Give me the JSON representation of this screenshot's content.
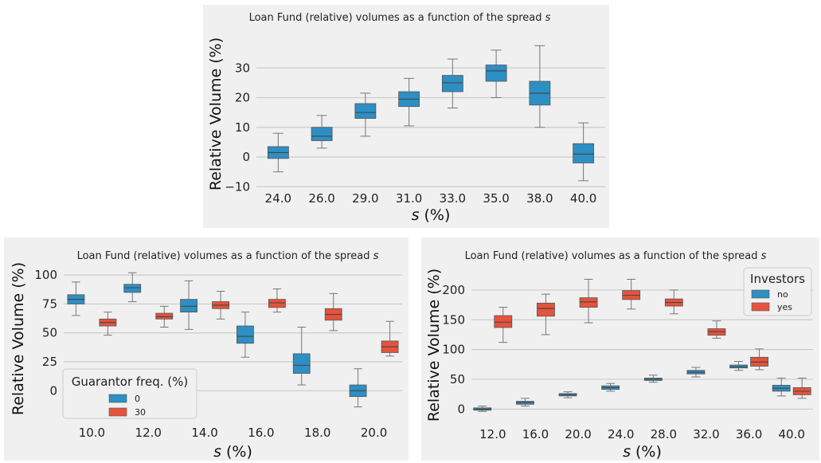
{
  "colors": {
    "blue": "#2d8fc4",
    "red": "#e5533c",
    "grid": "#cbcbcb",
    "panel_bg": "#f0f0f0"
  },
  "chart_data": [
    {
      "type": "box",
      "title": "Loan Fund (relative) volumes as a function of the spread ",
      "title_var": "s",
      "xlabel_var": "s",
      "xlabel_unit": " (%)",
      "ylabel": "Relative Volume (%)",
      "yticks": [
        -10,
        0,
        10,
        20,
        30
      ],
      "ylim": [
        -11,
        40
      ],
      "categories": [
        "24.0",
        "26.0",
        "29.0",
        "31.0",
        "33.0",
        "35.0",
        "38.0",
        "40.0"
      ],
      "series": [
        {
          "color": "#2d8fc4",
          "boxes": [
            {
              "whislo": -5,
              "q1": -0.5,
              "med": 1.5,
              "q3": 3.5,
              "whishi": 8
            },
            {
              "whislo": 3,
              "q1": 5.5,
              "med": 7,
              "q3": 10,
              "whishi": 14
            },
            {
              "whislo": 7,
              "q1": 13,
              "med": 15,
              "q3": 18,
              "whishi": 21.5
            },
            {
              "whislo": 10.5,
              "q1": 17,
              "med": 19.5,
              "q3": 22,
              "whishi": 26.5
            },
            {
              "whislo": 16.5,
              "q1": 22,
              "med": 25,
              "q3": 27.5,
              "whishi": 33
            },
            {
              "whislo": 20,
              "q1": 25.5,
              "med": 29,
              "q3": 31,
              "whishi": 36
            },
            {
              "whislo": 10,
              "q1": 17.5,
              "med": 21.5,
              "q3": 25.5,
              "whishi": 37.5
            },
            {
              "whislo": -8,
              "q1": -2,
              "med": 1,
              "q3": 4.5,
              "whishi": 11.5
            }
          ]
        }
      ]
    },
    {
      "type": "box",
      "title": "Loan Fund (relative) volumes as a function of the spread ",
      "title_var": "s",
      "xlabel_var": "s",
      "xlabel_unit": " (%)",
      "ylabel": "Relative Volume (%)",
      "yticks": [
        0,
        25,
        50,
        75,
        100
      ],
      "ylim": [
        -17,
        107
      ],
      "categories": [
        "10.0",
        "12.0",
        "14.0",
        "16.0",
        "18.0",
        "20.0"
      ],
      "legend": {
        "title": "Guarantor freq. (%)",
        "placement": "lower-left"
      },
      "series": [
        {
          "name": "0",
          "color": "#2d8fc4",
          "boxes": [
            {
              "whislo": 65,
              "q1": 75,
              "med": 79,
              "q3": 83,
              "whishi": 94
            },
            {
              "whislo": 77,
              "q1": 85,
              "med": 89,
              "q3": 92,
              "whishi": 102
            },
            {
              "whislo": 53,
              "q1": 68,
              "med": 73,
              "q3": 79,
              "whishi": 95
            },
            {
              "whislo": 29,
              "q1": 41,
              "med": 47,
              "q3": 56,
              "whishi": 68
            },
            {
              "whislo": 5,
              "q1": 15,
              "med": 22,
              "q3": 32,
              "whishi": 55
            },
            {
              "whislo": -14,
              "q1": -5,
              "med": 0,
              "q3": 5,
              "whishi": 19
            }
          ]
        },
        {
          "name": "30",
          "color": "#e5533c",
          "boxes": [
            {
              "whislo": 48,
              "q1": 56,
              "med": 59,
              "q3": 62,
              "whishi": 68
            },
            {
              "whislo": 55,
              "q1": 62,
              "med": 64,
              "q3": 67,
              "whishi": 73
            },
            {
              "whislo": 62,
              "q1": 71,
              "med": 74,
              "q3": 77,
              "whishi": 86
            },
            {
              "whislo": 68,
              "q1": 72,
              "med": 76,
              "q3": 79,
              "whishi": 88
            },
            {
              "whislo": 52,
              "q1": 61,
              "med": 66,
              "q3": 71,
              "whishi": 84
            },
            {
              "whislo": 30,
              "q1": 33,
              "med": 38,
              "q3": 43,
              "whishi": 60
            }
          ]
        }
      ]
    },
    {
      "type": "box",
      "title": "Loan Fund (relative) volumes as a function of the spread ",
      "title_var": "s",
      "xlabel_var": "s",
      "xlabel_unit": " (%)",
      "ylabel": "Relative Volume (%)",
      "yticks": [
        0,
        50,
        100,
        150,
        200
      ],
      "ylim": [
        -13,
        228
      ],
      "categories": [
        "12.0",
        "16.0",
        "20.0",
        "24.0",
        "28.0",
        "32.0",
        "36.0",
        "40.0"
      ],
      "legend": {
        "title": "Investors",
        "placement": "upper-right"
      },
      "series": [
        {
          "name": "no",
          "color": "#2d8fc4",
          "boxes": [
            {
              "whislo": -4,
              "q1": -2,
              "med": 0,
              "q3": 2,
              "whishi": 5
            },
            {
              "whislo": 5,
              "q1": 8,
              "med": 11,
              "q3": 13,
              "whishi": 18
            },
            {
              "whislo": 19,
              "q1": 22,
              "med": 24,
              "q3": 26,
              "whishi": 29
            },
            {
              "whislo": 30,
              "q1": 33,
              "med": 36,
              "q3": 39,
              "whishi": 43
            },
            {
              "whislo": 45,
              "q1": 48,
              "med": 50,
              "q3": 52,
              "whishi": 57
            },
            {
              "whislo": 54,
              "q1": 59,
              "med": 62,
              "q3": 65,
              "whishi": 70
            },
            {
              "whislo": 65,
              "q1": 69,
              "med": 71,
              "q3": 74,
              "whishi": 80
            },
            {
              "whislo": 22,
              "q1": 30,
              "med": 35,
              "q3": 40,
              "whishi": 52
            }
          ]
        },
        {
          "name": "yes",
          "color": "#e5533c",
          "boxes": [
            {
              "whislo": 112,
              "q1": 137,
              "med": 146,
              "q3": 157,
              "whishi": 171
            },
            {
              "whislo": 125,
              "q1": 156,
              "med": 169,
              "q3": 178,
              "whishi": 193
            },
            {
              "whislo": 145,
              "q1": 171,
              "med": 180,
              "q3": 187,
              "whishi": 218
            },
            {
              "whislo": 168,
              "q1": 184,
              "med": 191,
              "q3": 199,
              "whishi": 218
            },
            {
              "whislo": 160,
              "q1": 173,
              "med": 179,
              "q3": 185,
              "whishi": 200
            },
            {
              "whislo": 119,
              "q1": 124,
              "med": 130,
              "q3": 135,
              "whishi": 148
            },
            {
              "whislo": 66,
              "q1": 72,
              "med": 79,
              "q3": 87,
              "whishi": 101
            },
            {
              "whislo": 18,
              "q1": 24,
              "med": 30,
              "q3": 36,
              "whishi": 52
            }
          ]
        }
      ]
    }
  ]
}
